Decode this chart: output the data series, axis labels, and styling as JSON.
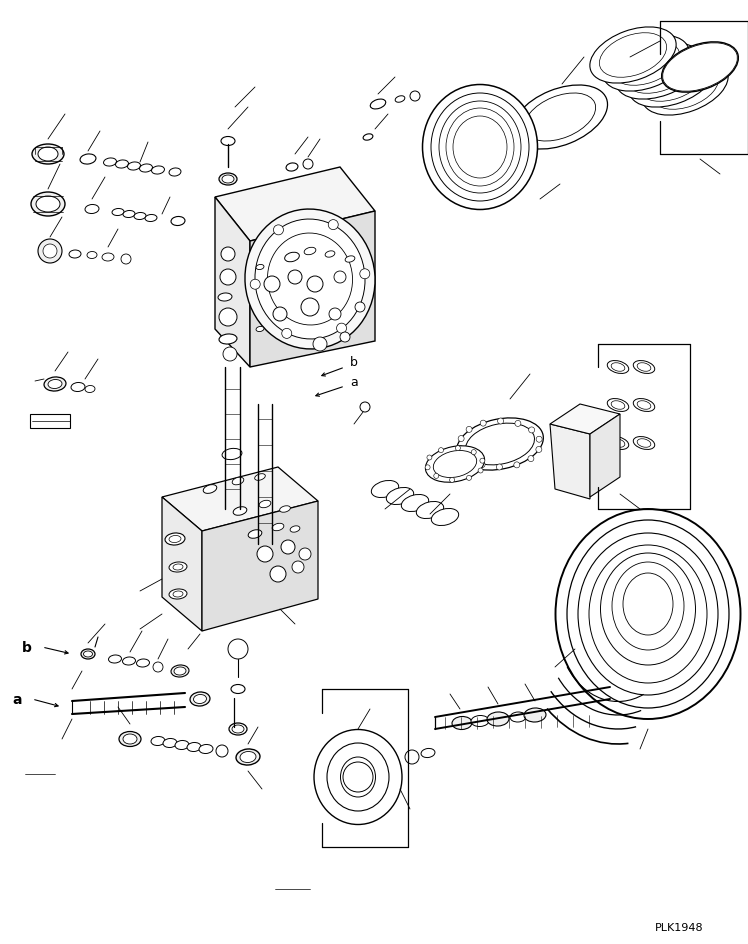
{
  "bg_color": "#ffffff",
  "line_color": "#000000",
  "fig_width": 7.48,
  "fig_height": 9.45,
  "dpi": 100,
  "watermark": "PLK1948",
  "label_b": "b",
  "label_a": "a"
}
